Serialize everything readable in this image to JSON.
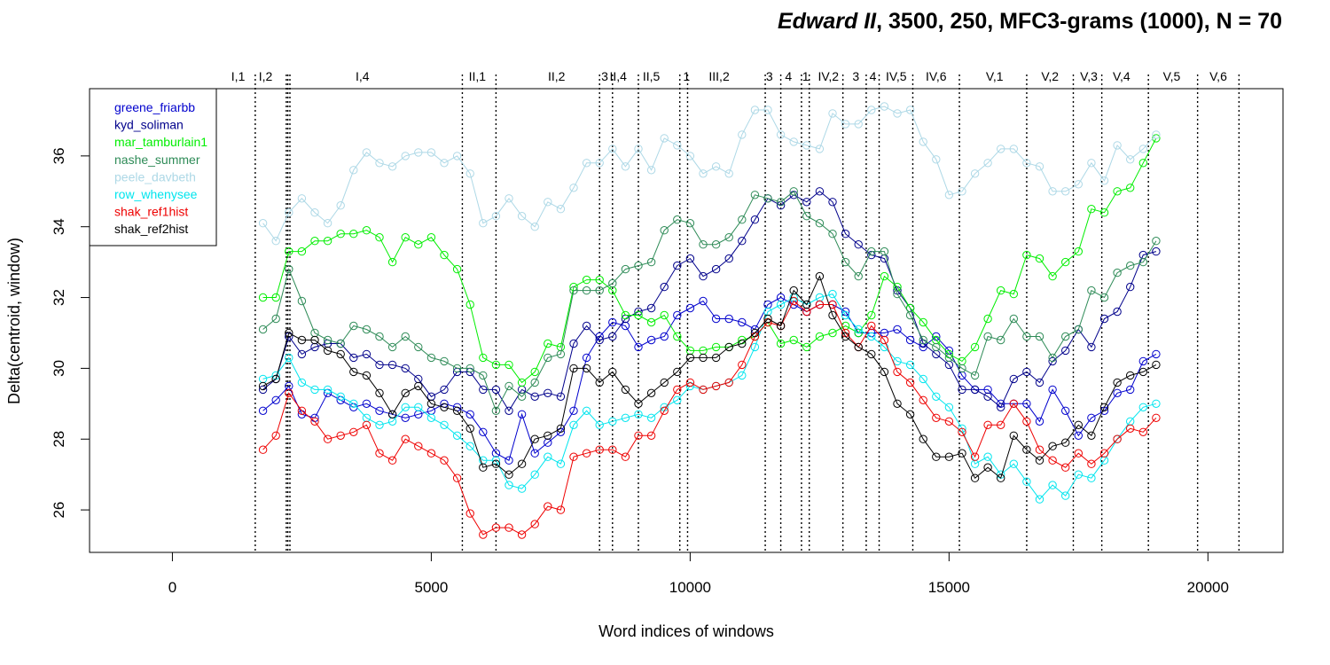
{
  "chart_data": {
    "type": "line",
    "title_italic": "Edward II",
    "title_rest": ", 3500, 250, MFC3-grams (1000), N = 70",
    "xlabel": "Word indices of windows",
    "ylabel": "Delta(centroid, window)",
    "xlim": [
      -1600,
      21450
    ],
    "ylim": [
      24.8,
      37.9
    ],
    "x_ticks": [
      0,
      5000,
      10000,
      15000,
      20000
    ],
    "y_ticks": [
      26,
      28,
      30,
      32,
      34,
      36
    ],
    "grid": false,
    "legend_position": "top-left",
    "scene_boundaries": [
      1600,
      2200,
      2230,
      2270,
      5600,
      6250,
      8250,
      8500,
      9000,
      9800,
      9950,
      11450,
      11750,
      12150,
      12300,
      12950,
      13400,
      13650,
      14300,
      15200,
      16500,
      17400,
      17950,
      18850,
      19800,
      20600
    ],
    "scene_labels": [
      {
        "label": "I,1",
        "x": 1270
      },
      {
        "label": "I,2",
        "x": 1800
      },
      {
        "label": "I,4",
        "x": 3670
      },
      {
        "label": "II,1",
        "x": 5890
      },
      {
        "label": "II,2",
        "x": 7420
      },
      {
        "label": "3",
        "x": 8350
      },
      {
        "label": "II,4",
        "x": 8610
      },
      {
        "label": "II,5",
        "x": 9250
      },
      {
        "label": "1",
        "x": 9930
      },
      {
        "label": "III,2",
        "x": 10560
      },
      {
        "label": "3",
        "x": 11530
      },
      {
        "label": "4",
        "x": 11900
      },
      {
        "label": "1",
        "x": 12230
      },
      {
        "label": "IV,2",
        "x": 12670
      },
      {
        "label": "3",
        "x": 13200
      },
      {
        "label": "4",
        "x": 13530
      },
      {
        "label": "IV,5",
        "x": 13980
      },
      {
        "label": "IV,6",
        "x": 14750
      },
      {
        "label": "V,1",
        "x": 15880
      },
      {
        "label": "V,2",
        "x": 16950
      },
      {
        "label": "V,3",
        "x": 17700
      },
      {
        "label": "V,4",
        "x": 18330
      },
      {
        "label": "V,5",
        "x": 19300
      },
      {
        "label": "V,6",
        "x": 20200
      }
    ],
    "x": [
      1750,
      2000,
      2250,
      2500,
      2750,
      3000,
      3250,
      3500,
      3750,
      4000,
      4250,
      4500,
      4750,
      5000,
      5250,
      5500,
      5750,
      6000,
      6250,
      6500,
      6750,
      7000,
      7250,
      7500,
      7750,
      8000,
      8250,
      8500,
      8750,
      9000,
      9250,
      9500,
      9750,
      10000,
      10250,
      10500,
      10750,
      11000,
      11250,
      11500,
      11750,
      12000,
      12250,
      12500,
      12750,
      13000,
      13250,
      13500,
      13750,
      14000,
      14250,
      14500,
      14750,
      15000,
      15250,
      15500,
      15750,
      16000,
      16250,
      16500,
      16750,
      17000,
      17250,
      17500,
      17750,
      18000,
      18250,
      18500,
      18750,
      19000
    ],
    "series": [
      {
        "name": "greene_friarbb",
        "color": "#0000CD",
        "values": [
          28.8,
          29.1,
          29.5,
          28.7,
          28.6,
          29.3,
          29.1,
          28.9,
          29.0,
          28.8,
          28.7,
          28.6,
          28.7,
          28.8,
          29.0,
          28.9,
          28.7,
          28.2,
          27.6,
          27.4,
          28.7,
          27.6,
          27.9,
          28.2,
          28.8,
          30.3,
          30.9,
          31.3,
          31.2,
          30.6,
          30.8,
          30.9,
          31.5,
          31.7,
          31.9,
          31.4,
          31.4,
          31.3,
          31.1,
          31.8,
          32.0,
          31.8,
          31.6,
          31.8,
          31.8,
          31.6,
          31.0,
          31.0,
          31.0,
          31.1,
          30.8,
          30.6,
          30.9,
          30.5,
          29.8,
          29.4,
          29.4,
          29.0,
          29.0,
          29.0,
          28.5,
          29.4,
          28.8,
          28.1,
          28.6,
          28.8,
          29.3,
          29.4,
          30.2,
          30.4
        ]
      },
      {
        "name": "kyd_soliman",
        "color": "#00008B",
        "values": [
          29.4,
          29.7,
          30.9,
          30.4,
          30.6,
          30.7,
          30.7,
          30.3,
          30.4,
          30.1,
          30.1,
          30.0,
          29.7,
          29.2,
          29.4,
          29.9,
          29.9,
          29.4,
          29.4,
          28.8,
          29.4,
          29.2,
          29.3,
          29.2,
          30.7,
          31.2,
          30.8,
          30.9,
          31.4,
          31.6,
          31.7,
          32.3,
          32.9,
          33.1,
          32.6,
          32.8,
          33.1,
          33.6,
          34.2,
          34.8,
          34.6,
          34.9,
          34.7,
          35.0,
          34.7,
          33.8,
          33.5,
          33.2,
          33.1,
          32.2,
          31.7,
          30.7,
          30.4,
          30.1,
          29.4,
          29.4,
          29.2,
          28.9,
          29.7,
          29.9,
          29.6,
          30.2,
          30.5,
          31.1,
          30.6,
          31.4,
          31.6,
          32.3,
          33.2,
          33.3
        ]
      },
      {
        "name": "mar_tamburlain1",
        "color": "#00EE00",
        "values": [
          32.0,
          32.0,
          33.3,
          33.3,
          33.6,
          33.6,
          33.8,
          33.8,
          33.9,
          33.7,
          33.0,
          33.7,
          33.5,
          33.7,
          33.2,
          32.8,
          31.8,
          30.3,
          30.1,
          30.1,
          29.6,
          29.9,
          30.7,
          30.6,
          32.3,
          32.5,
          32.5,
          32.2,
          31.5,
          31.5,
          31.3,
          31.5,
          30.9,
          30.5,
          30.5,
          30.6,
          30.6,
          30.8,
          30.9,
          31.3,
          30.7,
          30.8,
          30.6,
          30.9,
          31.0,
          31.2,
          31.0,
          31.5,
          32.6,
          32.3,
          31.7,
          31.3,
          30.8,
          30.4,
          30.2,
          30.6,
          31.4,
          32.2,
          32.1,
          33.2,
          33.1,
          32.6,
          33.0,
          33.3,
          34.5,
          34.4,
          35.0,
          35.1,
          35.8,
          36.5
        ]
      },
      {
        "name": "nashe_summer",
        "color": "#2E8B57",
        "values": [
          31.1,
          31.4,
          32.8,
          31.9,
          31.0,
          30.8,
          30.7,
          31.2,
          31.1,
          30.9,
          30.6,
          30.9,
          30.6,
          30.3,
          30.2,
          30.0,
          30.0,
          29.8,
          28.8,
          29.5,
          29.2,
          29.6,
          30.3,
          30.4,
          32.2,
          32.2,
          32.2,
          32.4,
          32.8,
          32.9,
          33.0,
          33.9,
          34.2,
          34.1,
          33.5,
          33.5,
          33.7,
          34.2,
          34.9,
          34.8,
          34.7,
          35.0,
          34.3,
          34.1,
          33.8,
          33.0,
          32.6,
          33.3,
          33.3,
          32.1,
          31.5,
          30.8,
          30.6,
          30.3,
          30.0,
          29.8,
          30.9,
          30.8,
          31.4,
          30.9,
          30.9,
          30.3,
          30.9,
          31.1,
          32.2,
          32.0,
          32.7,
          32.9,
          33.0,
          33.6
        ]
      },
      {
        "name": "peele_davbeth",
        "color": "#ADD8E6",
        "values": [
          34.1,
          33.6,
          34.4,
          34.8,
          34.4,
          34.1,
          34.6,
          35.6,
          36.1,
          35.8,
          35.7,
          36.0,
          36.1,
          36.1,
          35.8,
          36.0,
          35.5,
          34.1,
          34.3,
          34.8,
          34.3,
          34.0,
          34.7,
          34.5,
          35.1,
          35.8,
          35.8,
          36.2,
          35.7,
          36.2,
          35.6,
          36.5,
          36.3,
          36.0,
          35.5,
          35.7,
          35.5,
          36.6,
          37.3,
          37.3,
          36.6,
          36.4,
          36.3,
          36.2,
          37.2,
          36.9,
          36.9,
          37.3,
          37.4,
          37.2,
          37.3,
          36.4,
          35.9,
          34.9,
          35.0,
          35.5,
          35.8,
          36.2,
          36.2,
          35.8,
          35.7,
          35.0,
          35.0,
          35.2,
          35.8,
          35.3,
          36.3,
          35.9,
          36.2,
          36.6
        ]
      },
      {
        "name": "row_whenysee",
        "color": "#00E5EE",
        "values": [
          29.7,
          29.8,
          30.3,
          29.6,
          29.4,
          29.4,
          29.2,
          29.0,
          28.6,
          28.4,
          28.5,
          28.9,
          28.9,
          28.6,
          28.4,
          28.1,
          27.8,
          27.4,
          27.4,
          26.7,
          26.6,
          27.0,
          27.5,
          27.3,
          28.4,
          28.8,
          28.4,
          28.5,
          28.6,
          28.7,
          28.6,
          28.9,
          29.1,
          29.5,
          29.4,
          29.5,
          29.6,
          29.8,
          30.6,
          31.6,
          31.8,
          32.0,
          31.8,
          32.0,
          32.1,
          31.5,
          31.1,
          30.9,
          30.6,
          30.2,
          30.1,
          29.7,
          29.2,
          28.9,
          28.3,
          27.3,
          27.5,
          27.0,
          27.3,
          26.8,
          26.3,
          26.7,
          26.4,
          27.0,
          26.9,
          27.4,
          28.0,
          28.5,
          28.9,
          29.0
        ]
      },
      {
        "name": "shak_ref1hist",
        "color": "#EE0000",
        "values": [
          27.7,
          28.1,
          29.3,
          28.8,
          28.5,
          28.0,
          28.1,
          28.2,
          28.4,
          27.6,
          27.4,
          28.0,
          27.8,
          27.6,
          27.4,
          26.9,
          25.9,
          25.3,
          25.5,
          25.5,
          25.3,
          25.6,
          26.1,
          26.0,
          27.5,
          27.6,
          27.7,
          27.7,
          27.5,
          28.1,
          28.1,
          28.8,
          29.4,
          29.6,
          29.4,
          29.5,
          29.6,
          30.1,
          30.9,
          31.3,
          31.2,
          31.9,
          31.6,
          31.8,
          31.8,
          31.0,
          30.6,
          31.2,
          30.8,
          29.9,
          29.6,
          29.1,
          28.6,
          28.5,
          28.2,
          27.5,
          28.4,
          28.4,
          29.0,
          28.5,
          27.7,
          27.4,
          27.2,
          27.6,
          27.3,
          27.6,
          28.0,
          28.3,
          28.2,
          28.6
        ]
      },
      {
        "name": "shak_ref2hist",
        "color": "#000000",
        "values": [
          29.5,
          29.7,
          31.0,
          30.8,
          30.8,
          30.5,
          30.4,
          29.9,
          29.8,
          29.3,
          28.7,
          29.3,
          29.5,
          29.0,
          28.9,
          28.8,
          28.3,
          27.2,
          27.3,
          27.0,
          27.3,
          28.0,
          28.1,
          28.3,
          30.0,
          30.0,
          29.6,
          29.9,
          29.4,
          29.0,
          29.3,
          29.6,
          29.9,
          30.3,
          30.3,
          30.3,
          30.6,
          30.7,
          31.0,
          31.4,
          31.2,
          32.2,
          31.8,
          32.6,
          31.5,
          30.9,
          30.6,
          30.4,
          29.9,
          29.0,
          28.7,
          28.0,
          27.5,
          27.5,
          27.6,
          26.9,
          27.2,
          26.9,
          28.1,
          27.7,
          27.4,
          27.8,
          27.9,
          28.4,
          28.1,
          28.9,
          29.6,
          29.8,
          29.9,
          30.1
        ]
      }
    ]
  }
}
